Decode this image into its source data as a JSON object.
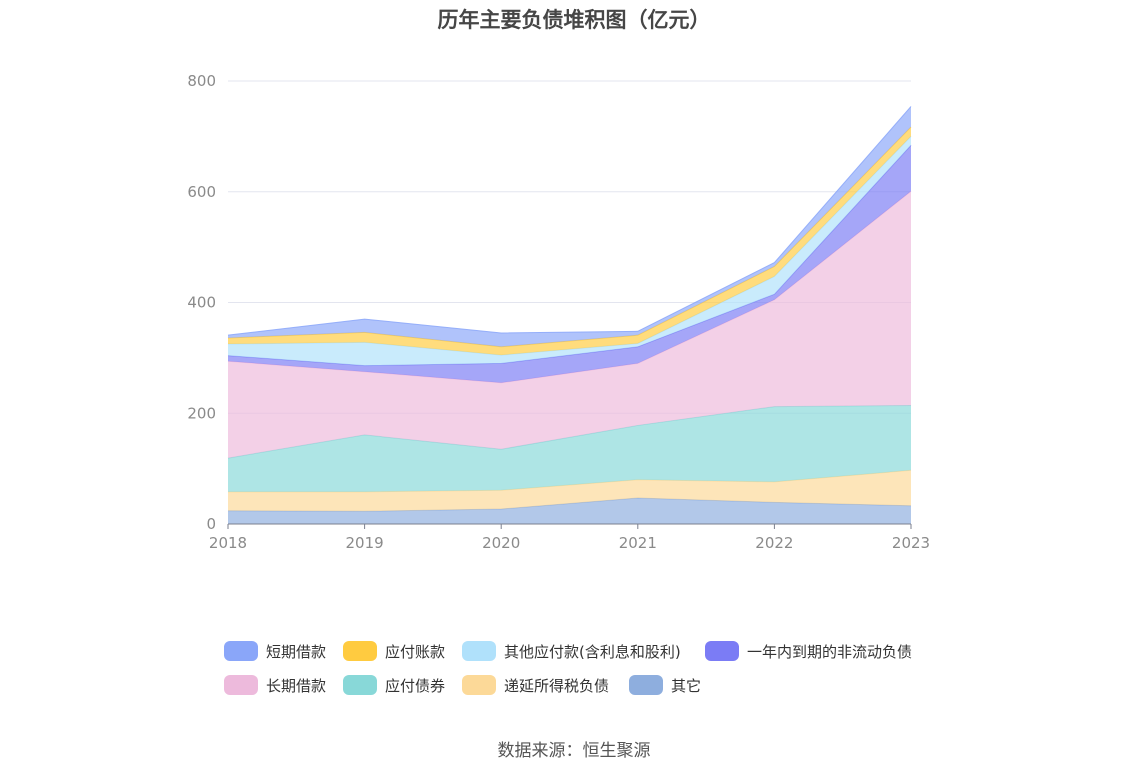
{
  "title": "历年主要负债堆积图（亿元）",
  "source": "数据来源：恒生聚源",
  "chart_data": {
    "type": "area",
    "stacked": true,
    "x": [
      "2018",
      "2019",
      "2020",
      "2021",
      "2022",
      "2023"
    ],
    "ylim": [
      0,
      800
    ],
    "yticks": [
      0,
      200,
      400,
      600,
      800
    ],
    "grid": true,
    "legend_position": "bottom",
    "series": [
      {
        "name": "其它",
        "color": "#8eaede",
        "values": [
          24,
          23,
          27,
          47,
          39,
          33
        ]
      },
      {
        "name": "递延所得税负债",
        "color": "#fcd998",
        "values": [
          34,
          35,
          34,
          33,
          37,
          64
        ]
      },
      {
        "name": "应付债券",
        "color": "#88d8d8",
        "values": [
          61,
          103,
          74,
          98,
          136,
          117
        ]
      },
      {
        "name": "长期借款",
        "color": "#edbadc",
        "values": [
          175,
          114,
          120,
          112,
          193,
          387
        ]
      },
      {
        "name": "一年内到期的非流动负债",
        "color": "#7b7cf5",
        "values": [
          10,
          11,
          35,
          30,
          10,
          83
        ]
      },
      {
        "name": "其他应付款(含利息和股利)",
        "color": "#b0e1fb",
        "values": [
          21,
          42,
          15,
          6,
          32,
          16
        ]
      },
      {
        "name": "应付账款",
        "color": "#ffcb40",
        "values": [
          11,
          18,
          15,
          15,
          18,
          17
        ]
      },
      {
        "name": "短期借款",
        "color": "#8aa6f9",
        "values": [
          5,
          24,
          25,
          7,
          7,
          37
        ]
      }
    ],
    "legend_order": [
      "短期借款",
      "应付账款",
      "其他应付款(含利息和股利)",
      "一年内到期的非流动负债",
      "长期借款",
      "应付债券",
      "递延所得税负债",
      "其它"
    ]
  }
}
